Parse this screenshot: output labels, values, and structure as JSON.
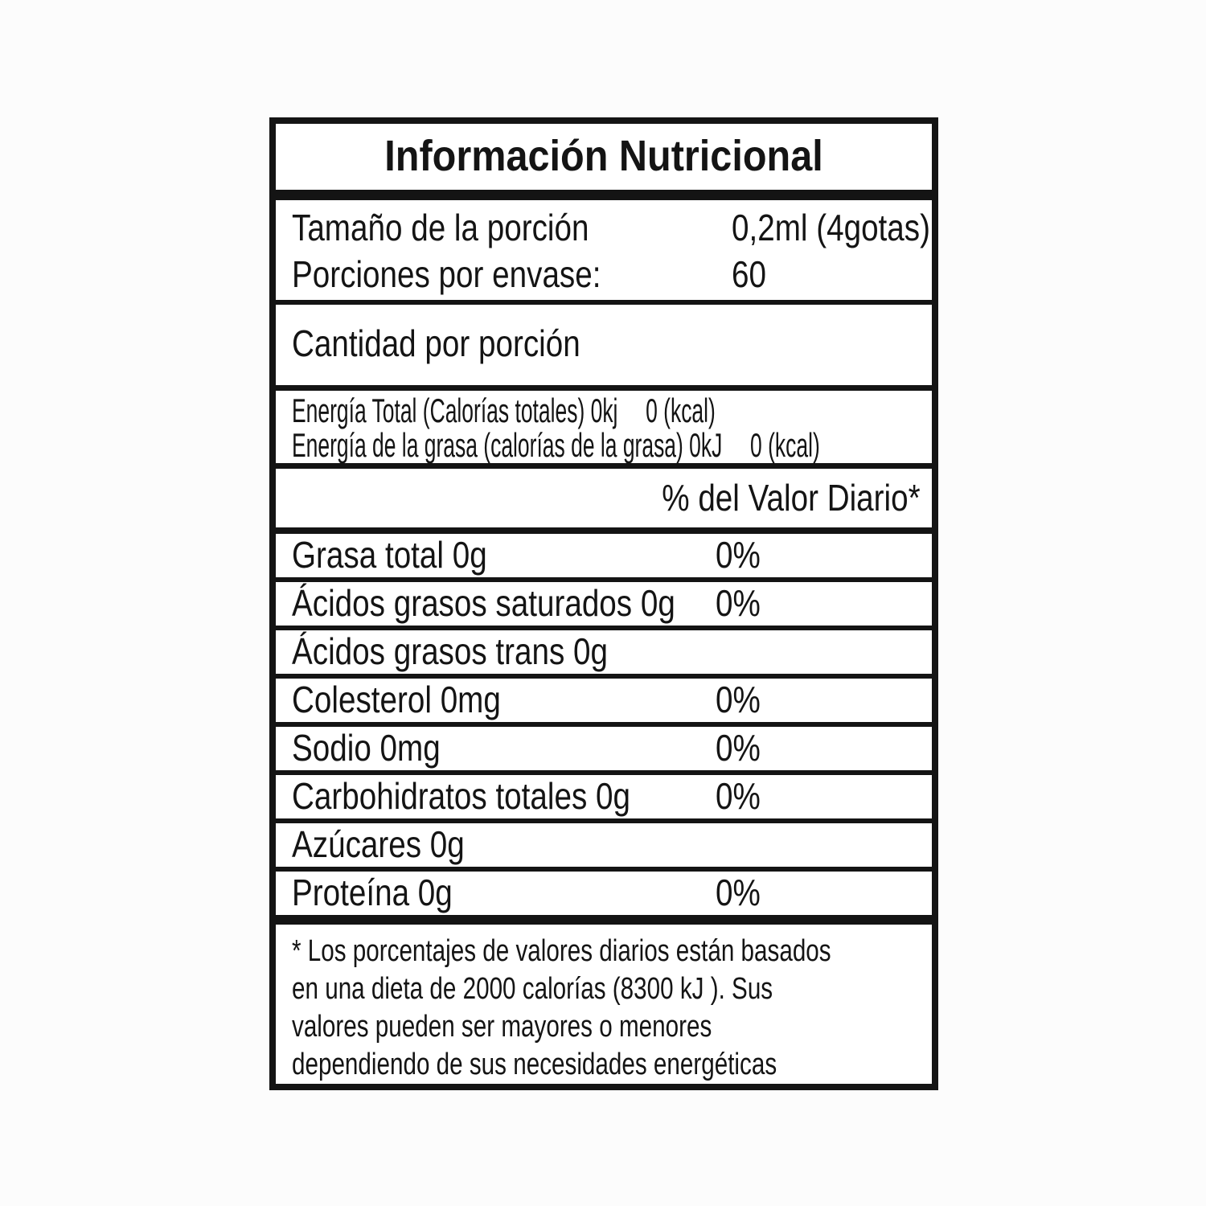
{
  "colors": {
    "ink": "#141414",
    "panel_background": "#ffffff",
    "page_background": "#fcfcfc"
  },
  "label": {
    "title": "Información Nutricional",
    "serving_rows": [
      {
        "label": "Tamaño de la porción",
        "value": "0,2ml (4gotas)"
      },
      {
        "label": "Porciones por envase:",
        "value": "60"
      }
    ],
    "amount_per_serving_heading": "Cantidad por porción",
    "energy_rows": [
      {
        "label": "Energía Total (Calorías totales) 0kj",
        "value": "0 (kcal)"
      },
      {
        "label": "Energía de la grasa (calorías de la grasa) 0kJ",
        "value": "0 (kcal)"
      }
    ],
    "daily_value_heading": "% del Valor Diario*",
    "nutrient_rows": [
      {
        "label": "Grasa total 0g",
        "daily_value": "0%"
      },
      {
        "label": "Ácidos grasos saturados 0g",
        "daily_value": "0%"
      },
      {
        "label": "Ácidos grasos trans 0g",
        "daily_value": ""
      },
      {
        "label": "Colesterol 0mg",
        "daily_value": "0%"
      },
      {
        "label": "Sodio 0mg",
        "daily_value": "0%"
      },
      {
        "label": "Carbohidratos totales 0g",
        "daily_value": "0%"
      },
      {
        "label": "Azúcares 0g",
        "daily_value": ""
      },
      {
        "label": "Proteína 0g",
        "daily_value": "0%"
      }
    ],
    "footnote_lines": [
      "* Los porcentajes de valores diarios están basados",
      "en una dieta de 2000 calorías (8300 kJ ). Sus",
      "valores pueden ser mayores o menores",
      "dependiendo de sus necesidades energéticas"
    ]
  }
}
